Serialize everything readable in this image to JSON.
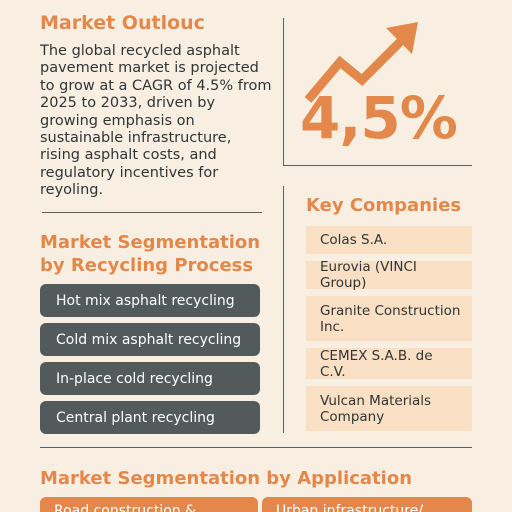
{
  "outlook": {
    "title": "Market Outlouc",
    "body": "The global recycled asphalt pavement market is projected to grow at a CAGR of 4.5% from 2025 to 2033, driven by growing emphasis on sustainable infrastructure, rising asphalt costs, and regulatory incentives for reyoling."
  },
  "stat": {
    "value": "4,5%",
    "icon": "trending-up-arrow-icon"
  },
  "companies": {
    "title": "Key Companies",
    "items": [
      "Colas S.A.",
      "Eurovia (VINCI Group)",
      "Granite Construction Inc.",
      "CEMEX S.A.B. de C.V.",
      "Vulcan Materials Company"
    ]
  },
  "process": {
    "title": "Market Segmentation by Recycling Process",
    "items": [
      "Hot mix asphalt recycling",
      "Cold mix asphalt recycling",
      "In-place cold recycling",
      "Central plant recycling"
    ]
  },
  "application": {
    "title": "Market Segmentation by Application",
    "items": [
      "Road construction & ...",
      "Urban infrastructure/..."
    ]
  },
  "colors": {
    "background": "#f8efe2",
    "accent": "#e3884a",
    "dark_button": "#525a5c",
    "company_box": "#f9dfc3",
    "text": "#2f3537"
  }
}
